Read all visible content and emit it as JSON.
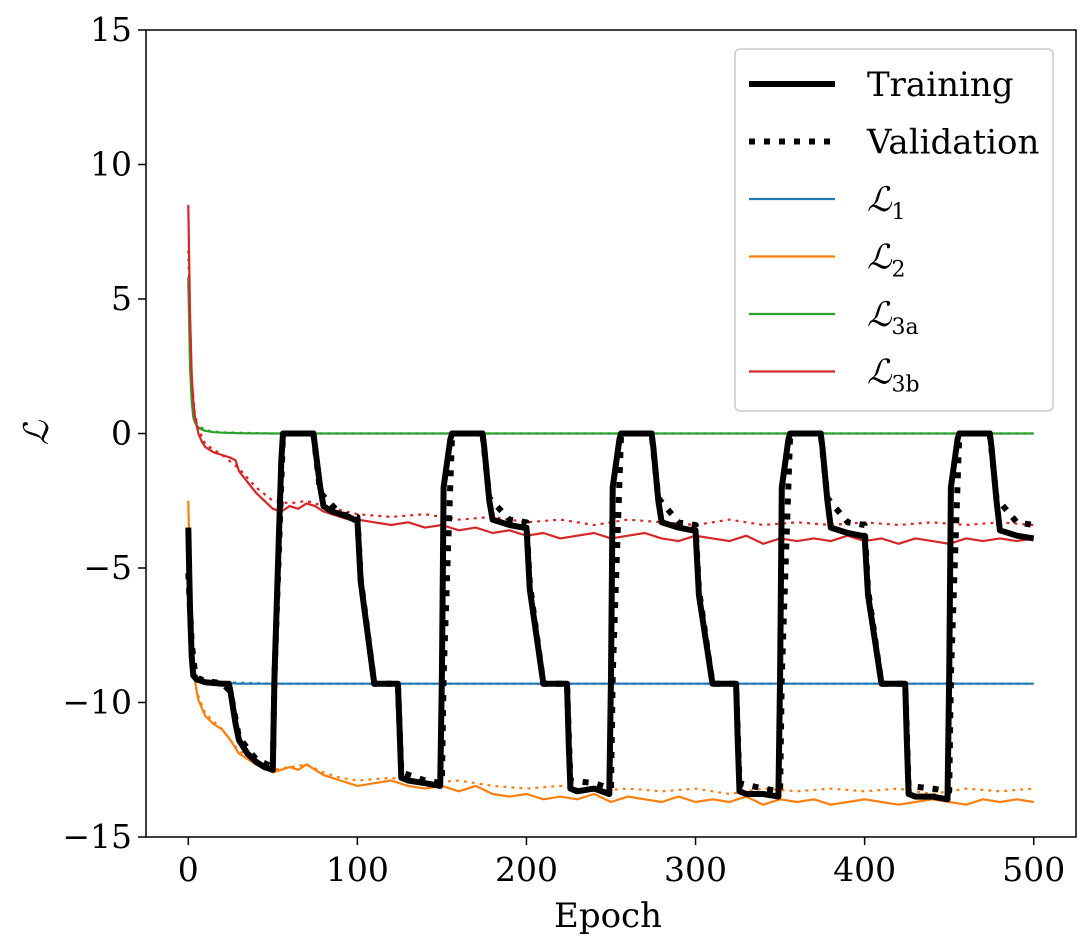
{
  "chart_data": {
    "type": "line",
    "xlabel": "Epoch",
    "ylabel": "ℒ",
    "xlim": [
      -25,
      525
    ],
    "ylim": [
      -15,
      15
    ],
    "xticks": [
      0,
      100,
      200,
      300,
      400,
      500
    ],
    "yticks": [
      -15,
      -10,
      -5,
      0,
      5,
      10,
      15
    ],
    "ytick_labels": [
      "−15",
      "−10",
      "−5",
      "0",
      "5",
      "10",
      "15"
    ],
    "legend": {
      "placement": "top-right",
      "entries": [
        {
          "label": "Training",
          "style": "solid-thick",
          "color": "#000000"
        },
        {
          "label": "Validation",
          "style": "dotted-thick",
          "color": "#000000"
        },
        {
          "label": "ℒ",
          "sub": "1",
          "style": "solid",
          "color": "#1f77b4"
        },
        {
          "label": "ℒ",
          "sub": "2",
          "style": "solid",
          "color": "#ff7f0e"
        },
        {
          "label": "ℒ",
          "sub": "3a",
          "style": "solid",
          "color": "#2ca02c"
        },
        {
          "label": "ℒ",
          "sub": "3b",
          "style": "solid",
          "color": "#d62728"
        }
      ]
    },
    "series": [
      {
        "name": "L1 training",
        "color": "#1f77b4",
        "style": "solid",
        "x": [
          0,
          1,
          2,
          3,
          4,
          5,
          6,
          8,
          10,
          15,
          20,
          30,
          50,
          100,
          200,
          300,
          400,
          500
        ],
        "y": [
          -5.5,
          -6.8,
          -8.0,
          -8.7,
          -9.0,
          -9.1,
          -9.15,
          -9.2,
          -9.22,
          -9.25,
          -9.27,
          -9.3,
          -9.3,
          -9.3,
          -9.3,
          -9.3,
          -9.3,
          -9.3
        ]
      },
      {
        "name": "L1 validation",
        "color": "#1f77b4",
        "style": "dotted",
        "x": [
          0,
          2,
          4,
          6,
          10,
          20,
          50,
          100,
          200,
          300,
          400,
          500
        ],
        "y": [
          -5.4,
          -7.8,
          -8.9,
          -9.1,
          -9.2,
          -9.25,
          -9.3,
          -9.3,
          -9.3,
          -9.3,
          -9.3,
          -9.3
        ]
      },
      {
        "name": "L2 training",
        "color": "#ff7f0e",
        "style": "solid",
        "x": [
          0,
          1,
          2,
          3,
          4,
          5,
          6,
          8,
          10,
          15,
          20,
          25,
          30,
          35,
          40,
          45,
          50,
          55,
          60,
          65,
          70,
          75,
          80,
          85,
          90,
          95,
          100,
          110,
          120,
          130,
          140,
          150,
          160,
          170,
          180,
          190,
          200,
          210,
          220,
          230,
          240,
          250,
          260,
          270,
          280,
          290,
          300,
          310,
          320,
          330,
          340,
          350,
          360,
          370,
          380,
          390,
          400,
          410,
          420,
          430,
          440,
          450,
          460,
          470,
          480,
          490,
          500
        ],
        "y": [
          -2.5,
          -5.5,
          -7.5,
          -8.5,
          -9.2,
          -9.6,
          -9.9,
          -10.2,
          -10.5,
          -10.8,
          -11.0,
          -11.4,
          -11.9,
          -12.1,
          -12.3,
          -12.4,
          -12.6,
          -12.5,
          -12.4,
          -12.5,
          -12.3,
          -12.5,
          -12.7,
          -12.8,
          -12.9,
          -13.0,
          -13.1,
          -13.0,
          -12.9,
          -13.1,
          -13.2,
          -13.1,
          -13.3,
          -13.1,
          -13.4,
          -13.5,
          -13.4,
          -13.6,
          -13.5,
          -13.6,
          -13.4,
          -13.7,
          -13.5,
          -13.6,
          -13.7,
          -13.5,
          -13.7,
          -13.6,
          -13.7,
          -13.5,
          -13.8,
          -13.6,
          -13.7,
          -13.6,
          -13.8,
          -13.7,
          -13.6,
          -13.7,
          -13.8,
          -13.7,
          -13.6,
          -13.7,
          -13.8,
          -13.6,
          -13.7,
          -13.6,
          -13.7
        ]
      },
      {
        "name": "L2 validation",
        "color": "#ff7f0e",
        "style": "dotted",
        "x": [
          0,
          2,
          5,
          10,
          20,
          30,
          50,
          60,
          70,
          80,
          90,
          100,
          120,
          140,
          160,
          180,
          200,
          220,
          240,
          260,
          280,
          300,
          320,
          340,
          360,
          380,
          400,
          420,
          440,
          460,
          480,
          500
        ],
        "y": [
          -3.5,
          -7.5,
          -9.6,
          -10.4,
          -11.0,
          -11.8,
          -12.5,
          -12.4,
          -12.3,
          -12.6,
          -12.8,
          -12.9,
          -12.8,
          -13.0,
          -12.9,
          -13.1,
          -13.2,
          -13.1,
          -13.3,
          -13.2,
          -13.3,
          -13.2,
          -13.4,
          -13.2,
          -13.3,
          -13.2,
          -13.3,
          -13.2,
          -13.4,
          -13.2,
          -13.3,
          -13.2
        ]
      },
      {
        "name": "L3a training",
        "color": "#2ca02c",
        "style": "solid",
        "x": [
          0,
          1,
          2,
          3,
          4,
          5,
          6,
          8,
          10,
          15,
          20,
          30,
          50,
          100,
          200,
          300,
          400,
          500
        ],
        "y": [
          5.8,
          2.5,
          1.2,
          0.6,
          0.4,
          0.3,
          0.2,
          0.15,
          0.1,
          0.05,
          0.03,
          0.01,
          0.0,
          0.0,
          0.0,
          0.0,
          0.0,
          0.0
        ]
      },
      {
        "name": "L3a validation",
        "color": "#2ca02c",
        "style": "dotted",
        "x": [
          0,
          2,
          4,
          6,
          10,
          20,
          50,
          100,
          200,
          300,
          400,
          500
        ],
        "y": [
          5.5,
          1.4,
          0.5,
          0.3,
          0.12,
          0.04,
          0.0,
          0.0,
          0.0,
          0.0,
          0.0,
          0.0
        ]
      },
      {
        "name": "L3b training",
        "color": "#d62728",
        "style": "solid",
        "x": [
          0,
          1,
          2,
          3,
          4,
          5,
          6,
          8,
          10,
          15,
          20,
          25,
          28,
          30,
          35,
          40,
          45,
          50,
          55,
          60,
          65,
          70,
          75,
          80,
          85,
          90,
          95,
          100,
          110,
          120,
          130,
          140,
          150,
          160,
          170,
          180,
          190,
          200,
          210,
          220,
          230,
          240,
          250,
          260,
          270,
          280,
          290,
          300,
          310,
          320,
          330,
          340,
          350,
          360,
          370,
          380,
          390,
          400,
          410,
          420,
          430,
          440,
          450,
          460,
          470,
          480,
          490,
          500
        ],
        "y": [
          8.5,
          4.5,
          2.2,
          1.2,
          0.6,
          0.3,
          0.0,
          -0.3,
          -0.5,
          -0.7,
          -0.8,
          -0.9,
          -1.0,
          -1.4,
          -1.8,
          -2.2,
          -2.5,
          -2.8,
          -2.9,
          -2.7,
          -2.8,
          -2.6,
          -2.7,
          -2.9,
          -3.0,
          -3.1,
          -3.2,
          -3.2,
          -3.3,
          -3.4,
          -3.3,
          -3.5,
          -3.4,
          -3.6,
          -3.5,
          -3.7,
          -3.6,
          -3.8,
          -3.7,
          -3.9,
          -3.8,
          -3.7,
          -3.9,
          -3.8,
          -3.7,
          -3.9,
          -4.0,
          -3.8,
          -3.9,
          -4.0,
          -3.8,
          -4.1,
          -3.9,
          -4.0,
          -3.9,
          -4.0,
          -3.8,
          -4.0,
          -3.9,
          -4.1,
          -3.9,
          -4.0,
          -4.1,
          -3.9,
          -4.0,
          -3.9,
          -4.0,
          -3.9
        ]
      },
      {
        "name": "L3b validation",
        "color": "#d62728",
        "style": "dotted",
        "x": [
          0,
          2,
          4,
          6,
          10,
          20,
          30,
          40,
          50,
          60,
          70,
          80,
          100,
          120,
          140,
          160,
          180,
          200,
          220,
          240,
          260,
          280,
          300,
          320,
          340,
          360,
          380,
          400,
          420,
          440,
          460,
          480,
          500
        ],
        "y": [
          6.8,
          2.0,
          0.7,
          0.2,
          -0.4,
          -0.8,
          -1.3,
          -2.0,
          -2.5,
          -2.6,
          -2.5,
          -2.7,
          -3.0,
          -3.1,
          -3.0,
          -3.2,
          -3.1,
          -3.3,
          -3.2,
          -3.4,
          -3.2,
          -3.3,
          -3.4,
          -3.2,
          -3.4,
          -3.3,
          -3.4,
          -3.3,
          -3.4,
          -3.3,
          -3.4,
          -3.3,
          -3.4
        ]
      },
      {
        "name": "Total training",
        "color": "#000000",
        "style": "solid-thick",
        "x": [
          0,
          1,
          2,
          3,
          5,
          8,
          10,
          20,
          24,
          25,
          28,
          30,
          35,
          40,
          45,
          50,
          51,
          55,
          56,
          60,
          65,
          70,
          74,
          75,
          78,
          80,
          85,
          90,
          95,
          98,
          100,
          102,
          110,
          124,
          125,
          126,
          130,
          140,
          149,
          150,
          151,
          155,
          156,
          160,
          170,
          174,
          175,
          178,
          180,
          190,
          198,
          200,
          202,
          210,
          224,
          225,
          226,
          230,
          240,
          249,
          250,
          251,
          255,
          256,
          260,
          270,
          274,
          275,
          278,
          280,
          290,
          298,
          300,
          302,
          310,
          324,
          325,
          326,
          330,
          340,
          349,
          350,
          351,
          355,
          356,
          360,
          370,
          374,
          375,
          378,
          380,
          390,
          398,
          400,
          402,
          410,
          424,
          425,
          426,
          430,
          440,
          449,
          450,
          451,
          455,
          456,
          460,
          470,
          474,
          475,
          478,
          480,
          490,
          500
        ],
        "y": [
          -3.5,
          -6.5,
          -8.3,
          -9.0,
          -9.15,
          -9.2,
          -9.25,
          -9.3,
          -9.3,
          -9.6,
          -10.8,
          -11.4,
          -11.9,
          -12.2,
          -12.4,
          -12.5,
          -9.0,
          -1.0,
          0.0,
          0.0,
          0.0,
          0.0,
          0.0,
          -0.5,
          -2.0,
          -2.7,
          -2.9,
          -3.0,
          -3.1,
          -3.2,
          -3.2,
          -5.5,
          -9.3,
          -9.3,
          -11.0,
          -12.8,
          -12.9,
          -13.0,
          -13.1,
          -9.0,
          -2.0,
          -0.2,
          0.0,
          0.0,
          0.0,
          0.0,
          -0.5,
          -2.5,
          -3.2,
          -3.4,
          -3.5,
          -3.5,
          -5.8,
          -9.3,
          -9.3,
          -11.5,
          -13.2,
          -13.3,
          -13.2,
          -13.4,
          -9.0,
          -2.0,
          -0.2,
          0.0,
          0.0,
          0.0,
          0.0,
          -0.5,
          -2.5,
          -3.3,
          -3.5,
          -3.6,
          -3.6,
          -6.0,
          -9.3,
          -9.3,
          -11.5,
          -13.3,
          -13.4,
          -13.4,
          -13.5,
          -9.0,
          -2.0,
          -0.2,
          0.0,
          0.0,
          0.0,
          0.0,
          -0.5,
          -2.5,
          -3.5,
          -3.7,
          -3.8,
          -3.8,
          -6.0,
          -9.3,
          -9.3,
          -11.5,
          -13.4,
          -13.5,
          -13.5,
          -13.6,
          -9.0,
          -2.0,
          -0.2,
          0.0,
          0.0,
          0.0,
          0.0,
          -0.5,
          -2.5,
          -3.6,
          -3.8,
          -3.9
        ]
      },
      {
        "name": "Total validation",
        "color": "#000000",
        "style": "dotted-thick",
        "x": [
          0,
          2,
          4,
          6,
          10,
          20,
          25,
          30,
          40,
          50,
          51,
          56,
          74,
          78,
          90,
          100,
          102,
          110,
          124,
          126,
          140,
          150,
          151,
          156,
          174,
          178,
          190,
          200,
          202,
          210,
          224,
          226,
          240,
          250,
          251,
          256,
          274,
          278,
          290,
          300,
          302,
          310,
          324,
          326,
          340,
          350,
          351,
          356,
          374,
          378,
          390,
          400,
          402,
          410,
          424,
          426,
          440,
          450,
          451,
          456,
          474,
          478,
          490,
          500
        ],
        "y": [
          -5.2,
          -7.8,
          -8.9,
          -9.1,
          -9.2,
          -9.28,
          -9.6,
          -11.3,
          -12.1,
          -12.4,
          -9.0,
          0.0,
          0.0,
          -2.2,
          -3.0,
          -3.1,
          -5.4,
          -9.3,
          -9.3,
          -12.6,
          -12.9,
          -13.0,
          -9.0,
          0.0,
          0.0,
          -2.4,
          -3.2,
          -3.3,
          -5.6,
          -9.3,
          -9.3,
          -12.9,
          -13.0,
          -13.2,
          -9.0,
          0.0,
          0.0,
          -2.4,
          -3.3,
          -3.4,
          -5.8,
          -9.3,
          -9.3,
          -13.0,
          -13.2,
          -13.3,
          -9.0,
          0.0,
          0.0,
          -2.4,
          -3.3,
          -3.4,
          -5.8,
          -9.3,
          -9.3,
          -13.1,
          -13.2,
          -13.3,
          -9.0,
          0.0,
          0.0,
          -2.4,
          -3.3,
          -3.4
        ]
      }
    ]
  }
}
